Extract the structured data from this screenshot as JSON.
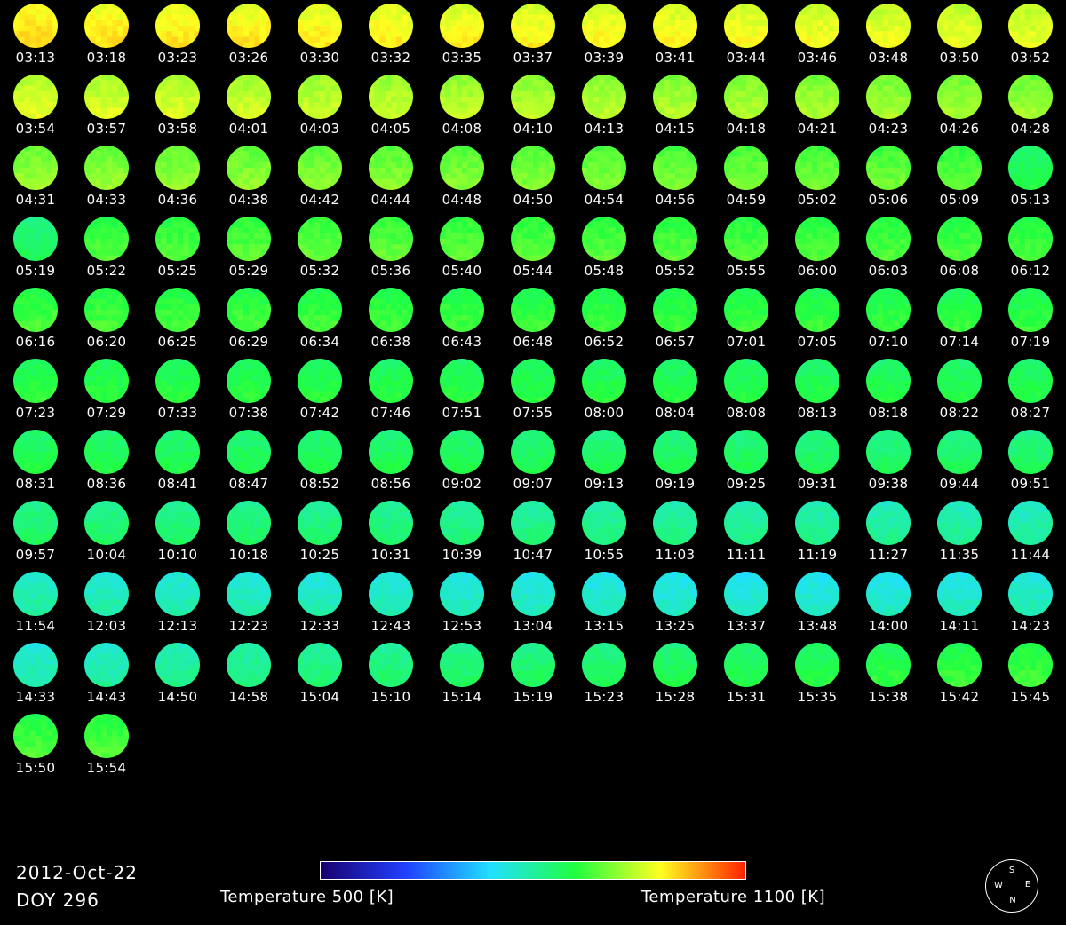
{
  "observations": [
    {
      "time": "03:13",
      "temp_k": 990
    },
    {
      "time": "03:18",
      "temp_k": 985
    },
    {
      "time": "03:23",
      "temp_k": 982
    },
    {
      "time": "03:26",
      "temp_k": 980
    },
    {
      "time": "03:30",
      "temp_k": 978
    },
    {
      "time": "03:32",
      "temp_k": 976
    },
    {
      "time": "03:35",
      "temp_k": 975
    },
    {
      "time": "03:37",
      "temp_k": 973
    },
    {
      "time": "03:39",
      "temp_k": 972
    },
    {
      "time": "03:41",
      "temp_k": 970
    },
    {
      "time": "03:44",
      "temp_k": 968
    },
    {
      "time": "03:46",
      "temp_k": 966
    },
    {
      "time": "03:48",
      "temp_k": 963
    },
    {
      "time": "03:50",
      "temp_k": 960
    },
    {
      "time": "03:52",
      "temp_k": 957
    },
    {
      "time": "03:54",
      "temp_k": 954
    },
    {
      "time": "03:57",
      "temp_k": 950
    },
    {
      "time": "03:58",
      "temp_k": 948
    },
    {
      "time": "04:01",
      "temp_k": 945
    },
    {
      "time": "04:03",
      "temp_k": 942
    },
    {
      "time": "04:05",
      "temp_k": 938
    },
    {
      "time": "04:08",
      "temp_k": 935
    },
    {
      "time": "04:10",
      "temp_k": 932
    },
    {
      "time": "04:13",
      "temp_k": 930
    },
    {
      "time": "04:15",
      "temp_k": 927
    },
    {
      "time": "04:18",
      "temp_k": 925
    },
    {
      "time": "04:21",
      "temp_k": 922
    },
    {
      "time": "04:23",
      "temp_k": 920
    },
    {
      "time": "04:26",
      "temp_k": 918
    },
    {
      "time": "04:28",
      "temp_k": 916
    },
    {
      "time": "04:31",
      "temp_k": 914
    },
    {
      "time": "04:33",
      "temp_k": 912
    },
    {
      "time": "04:36",
      "temp_k": 910
    },
    {
      "time": "04:38",
      "temp_k": 908
    },
    {
      "time": "04:42",
      "temp_k": 906
    },
    {
      "time": "04:44",
      "temp_k": 904
    },
    {
      "time": "04:48",
      "temp_k": 902
    },
    {
      "time": "04:50",
      "temp_k": 900
    },
    {
      "time": "04:54",
      "temp_k": 898
    },
    {
      "time": "04:56",
      "temp_k": 896
    },
    {
      "time": "04:59",
      "temp_k": 894
    },
    {
      "time": "05:02",
      "temp_k": 892
    },
    {
      "time": "05:06",
      "temp_k": 890
    },
    {
      "time": "05:09",
      "temp_k": 880
    },
    {
      "time": "05:13",
      "temp_k": 845
    },
    {
      "time": "05:19",
      "temp_k": 830
    },
    {
      "time": "05:22",
      "temp_k": 872
    },
    {
      "time": "05:25",
      "temp_k": 876
    },
    {
      "time": "05:29",
      "temp_k": 880
    },
    {
      "time": "05:32",
      "temp_k": 884
    },
    {
      "time": "05:36",
      "temp_k": 884
    },
    {
      "time": "05:40",
      "temp_k": 882
    },
    {
      "time": "05:44",
      "temp_k": 880
    },
    {
      "time": "05:48",
      "temp_k": 878
    },
    {
      "time": "05:52",
      "temp_k": 876
    },
    {
      "time": "05:55",
      "temp_k": 875
    },
    {
      "time": "06:00",
      "temp_k": 874
    },
    {
      "time": "06:03",
      "temp_k": 873
    },
    {
      "time": "06:08",
      "temp_k": 872
    },
    {
      "time": "06:12",
      "temp_k": 871
    },
    {
      "time": "06:16",
      "temp_k": 870
    },
    {
      "time": "06:20",
      "temp_k": 870
    },
    {
      "time": "06:25",
      "temp_k": 869
    },
    {
      "time": "06:29",
      "temp_k": 868
    },
    {
      "time": "06:34",
      "temp_k": 867
    },
    {
      "time": "06:38",
      "temp_k": 866
    },
    {
      "time": "06:43",
      "temp_k": 865
    },
    {
      "time": "06:48",
      "temp_k": 864
    },
    {
      "time": "06:52",
      "temp_k": 863
    },
    {
      "time": "06:57",
      "temp_k": 862
    },
    {
      "time": "07:01",
      "temp_k": 861
    },
    {
      "time": "07:05",
      "temp_k": 860
    },
    {
      "time": "07:10",
      "temp_k": 859
    },
    {
      "time": "07:14",
      "temp_k": 858
    },
    {
      "time": "07:19",
      "temp_k": 857
    },
    {
      "time": "07:23",
      "temp_k": 856
    },
    {
      "time": "07:29",
      "temp_k": 855
    },
    {
      "time": "07:33",
      "temp_k": 854
    },
    {
      "time": "07:38",
      "temp_k": 853
    },
    {
      "time": "07:42",
      "temp_k": 852
    },
    {
      "time": "07:46",
      "temp_k": 851
    },
    {
      "time": "07:51",
      "temp_k": 850
    },
    {
      "time": "07:55",
      "temp_k": 850
    },
    {
      "time": "08:00",
      "temp_k": 849
    },
    {
      "time": "08:04",
      "temp_k": 848
    },
    {
      "time": "08:08",
      "temp_k": 848
    },
    {
      "time": "08:13",
      "temp_k": 847
    },
    {
      "time": "08:18",
      "temp_k": 846
    },
    {
      "time": "08:22",
      "temp_k": 846
    },
    {
      "time": "08:27",
      "temp_k": 845
    },
    {
      "time": "08:31",
      "temp_k": 844
    },
    {
      "time": "08:36",
      "temp_k": 843
    },
    {
      "time": "08:41",
      "temp_k": 842
    },
    {
      "time": "08:47",
      "temp_k": 841
    },
    {
      "time": "08:52",
      "temp_k": 840
    },
    {
      "time": "08:56",
      "temp_k": 839
    },
    {
      "time": "09:02",
      "temp_k": 838
    },
    {
      "time": "09:07",
      "temp_k": 837
    },
    {
      "time": "09:13",
      "temp_k": 836
    },
    {
      "time": "09:19",
      "temp_k": 835
    },
    {
      "time": "09:25",
      "temp_k": 834
    },
    {
      "time": "09:31",
      "temp_k": 833
    },
    {
      "time": "09:38",
      "temp_k": 832
    },
    {
      "time": "09:44",
      "temp_k": 831
    },
    {
      "time": "09:51",
      "temp_k": 830
    },
    {
      "time": "09:57",
      "temp_k": 828
    },
    {
      "time": "10:04",
      "temp_k": 826
    },
    {
      "time": "10:10",
      "temp_k": 824
    },
    {
      "time": "10:18",
      "temp_k": 822
    },
    {
      "time": "10:25",
      "temp_k": 820
    },
    {
      "time": "10:31",
      "temp_k": 818
    },
    {
      "time": "10:39",
      "temp_k": 815
    },
    {
      "time": "10:47",
      "temp_k": 812
    },
    {
      "time": "10:55",
      "temp_k": 809
    },
    {
      "time": "11:03",
      "temp_k": 806
    },
    {
      "time": "11:11",
      "temp_k": 803
    },
    {
      "time": "11:19",
      "temp_k": 800
    },
    {
      "time": "11:27",
      "temp_k": 797
    },
    {
      "time": "11:35",
      "temp_k": 794
    },
    {
      "time": "11:44",
      "temp_k": 790
    },
    {
      "time": "11:54",
      "temp_k": 786
    },
    {
      "time": "12:03",
      "temp_k": 782
    },
    {
      "time": "12:13",
      "temp_k": 780
    },
    {
      "time": "12:23",
      "temp_k": 778
    },
    {
      "time": "12:33",
      "temp_k": 776
    },
    {
      "time": "12:43",
      "temp_k": 774
    },
    {
      "time": "12:53",
      "temp_k": 772
    },
    {
      "time": "13:04",
      "temp_k": 770
    },
    {
      "time": "13:15",
      "temp_k": 768
    },
    {
      "time": "13:25",
      "temp_k": 766
    },
    {
      "time": "13:37",
      "temp_k": 764
    },
    {
      "time": "13:48",
      "temp_k": 765
    },
    {
      "time": "14:00",
      "temp_k": 766
    },
    {
      "time": "14:11",
      "temp_k": 770
    },
    {
      "time": "14:23",
      "temp_k": 776
    },
    {
      "time": "14:33",
      "temp_k": 780
    },
    {
      "time": "14:43",
      "temp_k": 786
    },
    {
      "time": "14:50",
      "temp_k": 800
    },
    {
      "time": "14:58",
      "temp_k": 808
    },
    {
      "time": "15:04",
      "temp_k": 814
    },
    {
      "time": "15:10",
      "temp_k": 820
    },
    {
      "time": "15:14",
      "temp_k": 826
    },
    {
      "time": "15:19",
      "temp_k": 830
    },
    {
      "time": "15:23",
      "temp_k": 834
    },
    {
      "time": "15:28",
      "temp_k": 838
    },
    {
      "time": "15:31",
      "temp_k": 842
    },
    {
      "time": "15:35",
      "temp_k": 848
    },
    {
      "time": "15:38",
      "temp_k": 856
    },
    {
      "time": "15:42",
      "temp_k": 862
    },
    {
      "time": "15:45",
      "temp_k": 868
    },
    {
      "time": "15:50",
      "temp_k": 872
    },
    {
      "time": "15:54",
      "temp_k": 874
    }
  ],
  "footer": {
    "date": "2012-Oct-22",
    "doy": "DOY 296",
    "colorbar_min_label": "Temperature 500 [K]",
    "colorbar_max_label": "Temperature 1100 [K]",
    "colorbar_min_k": 500,
    "colorbar_max_k": 1100,
    "colorbar_colors": [
      "#1a0070",
      "#2040ff",
      "#20e0ff",
      "#20ff40",
      "#ffff20",
      "#ff2000"
    ]
  },
  "compass": {
    "s": "S",
    "w": "W",
    "e": "E",
    "n": "N"
  }
}
